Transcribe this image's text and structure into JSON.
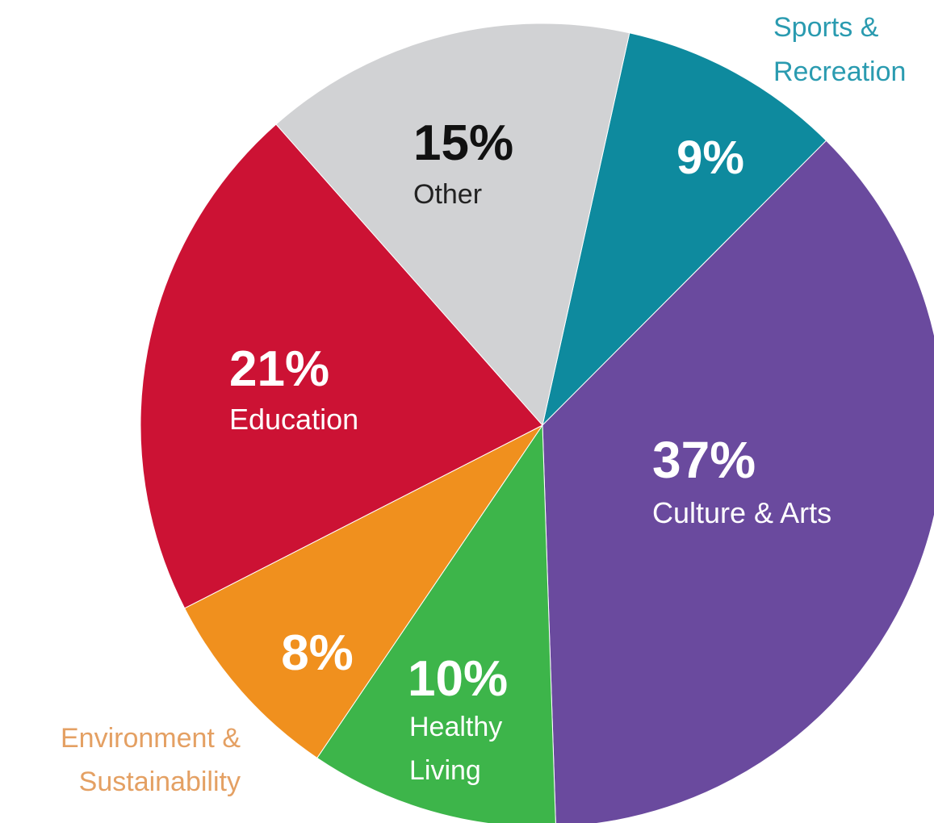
{
  "chart_data": {
    "type": "pie",
    "title": "",
    "slices": [
      {
        "label": "Sports & Recreation",
        "value": 9,
        "value_label": "9%",
        "color": "#0e8a9e",
        "label_color": "#2a9bb0"
      },
      {
        "label": "Culture & Arts",
        "value": 37,
        "value_label": "37%",
        "color": "#6a4a9e",
        "label_color": "#ffffff"
      },
      {
        "label": "Healthy Living",
        "value": 10,
        "value_label": "10%",
        "color": "#3db54a",
        "label_color": "#ffffff"
      },
      {
        "label": "Environment & Sustainability",
        "value": 8,
        "value_label": "8%",
        "color": "#f0901e",
        "label_color": "#e4a063"
      },
      {
        "label": "Education",
        "value": 21,
        "value_label": "21%",
        "color": "#cc1234",
        "label_color": "#ffffff"
      },
      {
        "label": "Other",
        "value": 15,
        "value_label": "15%",
        "color": "#d1d2d4",
        "label_color": "#111111"
      }
    ]
  }
}
